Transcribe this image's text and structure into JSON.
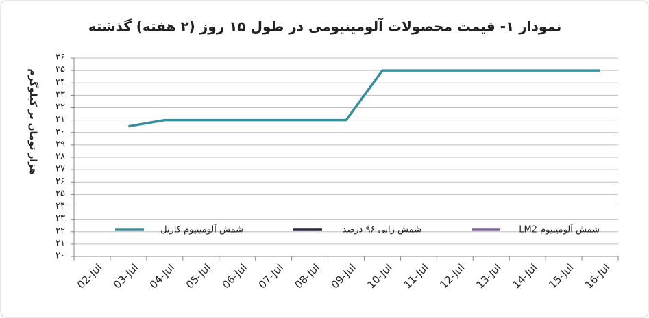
{
  "chart_data": {
    "type": "line",
    "title": "نمودار ۱- قیمت محصولات آلومینیومی در طول ۱۵ روز (۲ هفته) گذشته",
    "y_label": "هزار تومان بر کیلوگرم",
    "categories": [
      "02-Jul",
      "03-Jul",
      "04-Jul",
      "05-Jul",
      "06-Jul",
      "07-Jul",
      "08-Jul",
      "09-Jul",
      "10-Jul",
      "11-Jul",
      "12-Jul",
      "13-Jul",
      "14-Jul",
      "15-Jul",
      "16-Jul"
    ],
    "series": [
      {
        "name": "شمش آلومینیوم کارتل",
        "color": "#3b8e9d",
        "values": [
          null,
          30.5,
          31,
          31,
          31,
          31,
          31,
          31,
          35,
          35,
          35,
          35,
          35,
          35,
          35
        ]
      },
      {
        "name": "شمش رانی ۹۶ درصد",
        "color": "#2c2240",
        "values": [
          null,
          null,
          null,
          null,
          null,
          null,
          null,
          null,
          null,
          null,
          null,
          null,
          null,
          null,
          null
        ]
      },
      {
        "name": "شمش آلومینیوم LM2",
        "color": "#8064a2",
        "values": [
          null,
          null,
          null,
          null,
          null,
          null,
          null,
          null,
          null,
          null,
          null,
          null,
          null,
          null,
          null
        ]
      }
    ],
    "ylim": [
      20,
      36
    ],
    "yticks": [
      {
        "value": 20,
        "label": "۲۰"
      },
      {
        "value": 21,
        "label": "۲۱"
      },
      {
        "value": 22,
        "label": "۲۲"
      },
      {
        "value": 23,
        "label": "۲۳"
      },
      {
        "value": 24,
        "label": "۲۴"
      },
      {
        "value": 25,
        "label": "۲۵"
      },
      {
        "value": 26,
        "label": "۲۶"
      },
      {
        "value": 27,
        "label": "۲۷"
      },
      {
        "value": 28,
        "label": "۲۸"
      },
      {
        "value": 29,
        "label": "۲۹"
      },
      {
        "value": 30,
        "label": "۳۰"
      },
      {
        "value": 31,
        "label": "۳۱"
      },
      {
        "value": 32,
        "label": "۳۲"
      },
      {
        "value": 33,
        "label": "۳۳"
      },
      {
        "value": 34,
        "label": "۳۴"
      },
      {
        "value": 35,
        "label": "۳۵"
      },
      {
        "value": 36,
        "label": "۳۶"
      }
    ],
    "grid": true
  }
}
